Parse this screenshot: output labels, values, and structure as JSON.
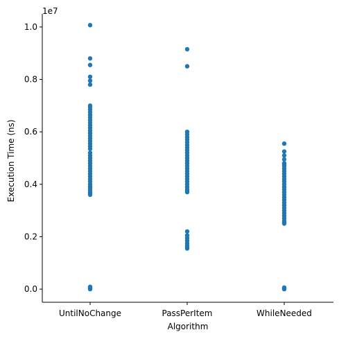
{
  "chart_data": {
    "type": "scatter",
    "title": "",
    "xlabel": "Algorithm",
    "ylabel": "Execution Time (ns)",
    "y_offset_label": "1e7",
    "categories": [
      "UntilNoChange",
      "PassPerItem",
      "WhileNeeded"
    ],
    "ylim": [
      -0.05,
      1.05
    ],
    "yticks": [
      0.0,
      0.2,
      0.4,
      0.6,
      0.8,
      1.0
    ],
    "ytick_labels": [
      "0.0",
      "0.2",
      "0.4",
      "0.6",
      "0.8",
      "1.0"
    ],
    "y_unit_scale": "1e7",
    "grid": false,
    "marker_color": "#1f77b4",
    "series": [
      {
        "category": "UntilNoChange",
        "values": [
          0.0,
          0.003,
          0.006,
          0.009,
          0.36,
          0.365,
          0.37,
          0.378,
          0.385,
          0.392,
          0.4,
          0.41,
          0.42,
          0.43,
          0.44,
          0.45,
          0.46,
          0.47,
          0.48,
          0.49,
          0.5,
          0.51,
          0.52,
          0.535,
          0.545,
          0.555,
          0.565,
          0.575,
          0.585,
          0.595,
          0.605,
          0.615,
          0.625,
          0.635,
          0.645,
          0.655,
          0.665,
          0.675,
          0.685,
          0.695,
          0.7,
          0.78,
          0.795,
          0.81,
          0.855,
          0.88,
          1.007
        ]
      },
      {
        "category": "PassPerItem",
        "values": [
          0.155,
          0.16,
          0.167,
          0.175,
          0.185,
          0.195,
          0.205,
          0.22,
          0.37,
          0.375,
          0.38,
          0.39,
          0.4,
          0.41,
          0.42,
          0.43,
          0.44,
          0.45,
          0.46,
          0.47,
          0.48,
          0.49,
          0.5,
          0.51,
          0.52,
          0.53,
          0.54,
          0.55,
          0.56,
          0.57,
          0.58,
          0.59,
          0.6,
          0.85,
          0.915
        ]
      },
      {
        "category": "WhileNeeded",
        "values": [
          0.0,
          0.003,
          0.006,
          0.25,
          0.255,
          0.26,
          0.27,
          0.28,
          0.29,
          0.3,
          0.31,
          0.32,
          0.33,
          0.34,
          0.35,
          0.36,
          0.37,
          0.38,
          0.39,
          0.4,
          0.41,
          0.42,
          0.43,
          0.44,
          0.45,
          0.46,
          0.47,
          0.475,
          0.48,
          0.495,
          0.51,
          0.525,
          0.555
        ]
      }
    ]
  }
}
